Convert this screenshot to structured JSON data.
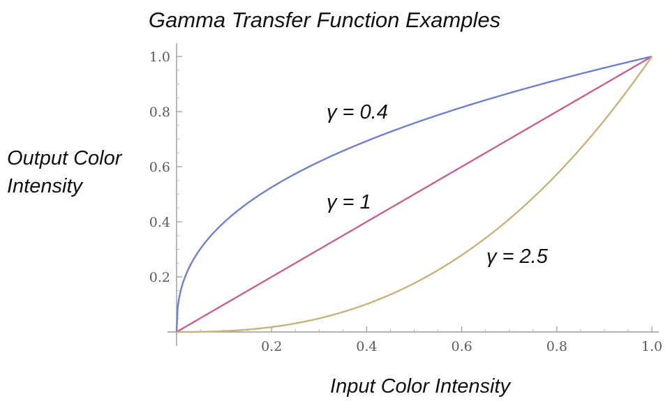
{
  "chart_data": {
    "type": "line",
    "title": "Gamma Transfer Function Examples",
    "xlabel": "Input Color Intensity",
    "ylabel_lines": [
      "Output Color",
      "Intensity"
    ],
    "xlim": [
      0,
      1
    ],
    "ylim": [
      0,
      1
    ],
    "x_ticks": [
      0.2,
      0.4,
      0.6,
      0.8,
      1.0
    ],
    "x_tick_labels": [
      "0.2",
      "0.4",
      "0.6",
      "0.8",
      "1.0"
    ],
    "y_ticks": [
      0.2,
      0.4,
      0.6,
      0.8,
      1.0
    ],
    "y_tick_labels": [
      "0.2",
      "0.4",
      "0.6",
      "0.8",
      "1.0"
    ],
    "grid": false,
    "legend": "none",
    "series": [
      {
        "label": "γ = 0.4",
        "gamma": 0.4,
        "color": "#6f7fd0",
        "x": [
          0,
          0.05,
          0.1,
          0.2,
          0.3,
          0.4,
          0.5,
          0.6,
          0.7,
          0.8,
          0.9,
          1.0
        ],
        "y": [
          0,
          0.302,
          0.398,
          0.525,
          0.618,
          0.693,
          0.758,
          0.815,
          0.867,
          0.915,
          0.959,
          1.0
        ]
      },
      {
        "label": "γ = 1",
        "gamma": 1,
        "color": "#c95f8f",
        "x": [
          0,
          0.1,
          0.2,
          0.3,
          0.4,
          0.5,
          0.6,
          0.7,
          0.8,
          0.9,
          1.0
        ],
        "y": [
          0,
          0.1,
          0.2,
          0.3,
          0.4,
          0.5,
          0.6,
          0.7,
          0.8,
          0.9,
          1.0
        ]
      },
      {
        "label": "γ = 2.5",
        "gamma": 2.5,
        "color": "#c9b27a",
        "x": [
          0,
          0.1,
          0.2,
          0.3,
          0.4,
          0.5,
          0.6,
          0.7,
          0.8,
          0.9,
          1.0
        ],
        "y": [
          0,
          0.003,
          0.018,
          0.049,
          0.101,
          0.177,
          0.279,
          0.41,
          0.572,
          0.768,
          1.0
        ]
      }
    ]
  }
}
